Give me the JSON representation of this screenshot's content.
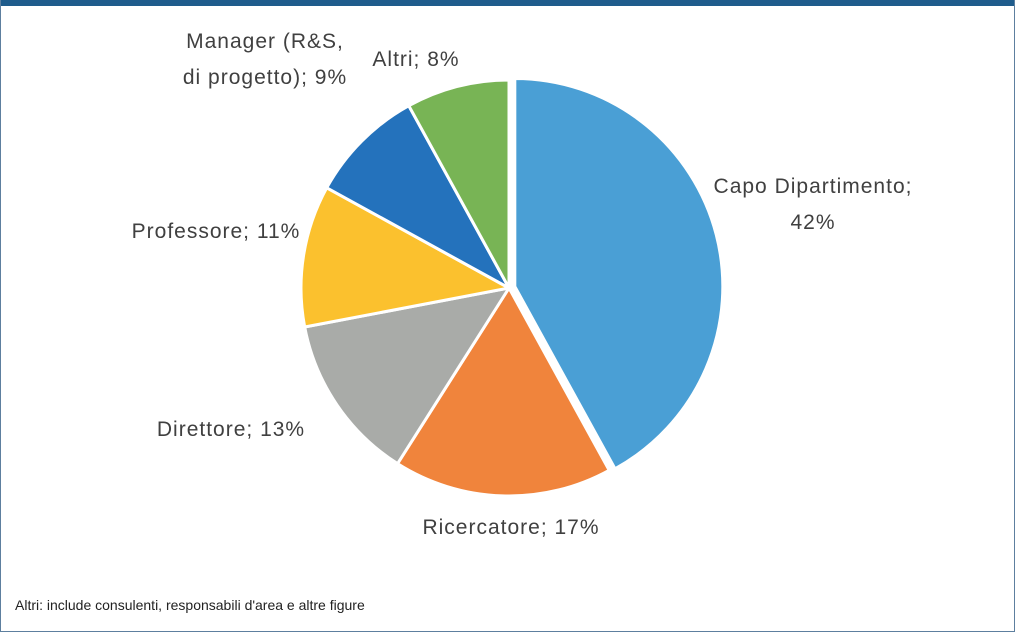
{
  "chart_data": {
    "type": "pie",
    "categories": [
      "Capo Dipartimento;",
      "Ricercatore;",
      "Direttore;",
      "Professore;",
      "Manager (R&S, di progetto);",
      "Altri;"
    ],
    "values": [
      42,
      17,
      13,
      11,
      9,
      8
    ],
    "value_labels": [
      "42%",
      "17%",
      "13%",
      "11%",
      "9%",
      "8%"
    ],
    "colors": [
      "#4a9fd5",
      "#f0843c",
      "#a9aba8",
      "#fbc12e",
      "#2472bc",
      "#78b455"
    ],
    "note": "Altri: include consulenti, responsabili d'area e altre figure"
  }
}
